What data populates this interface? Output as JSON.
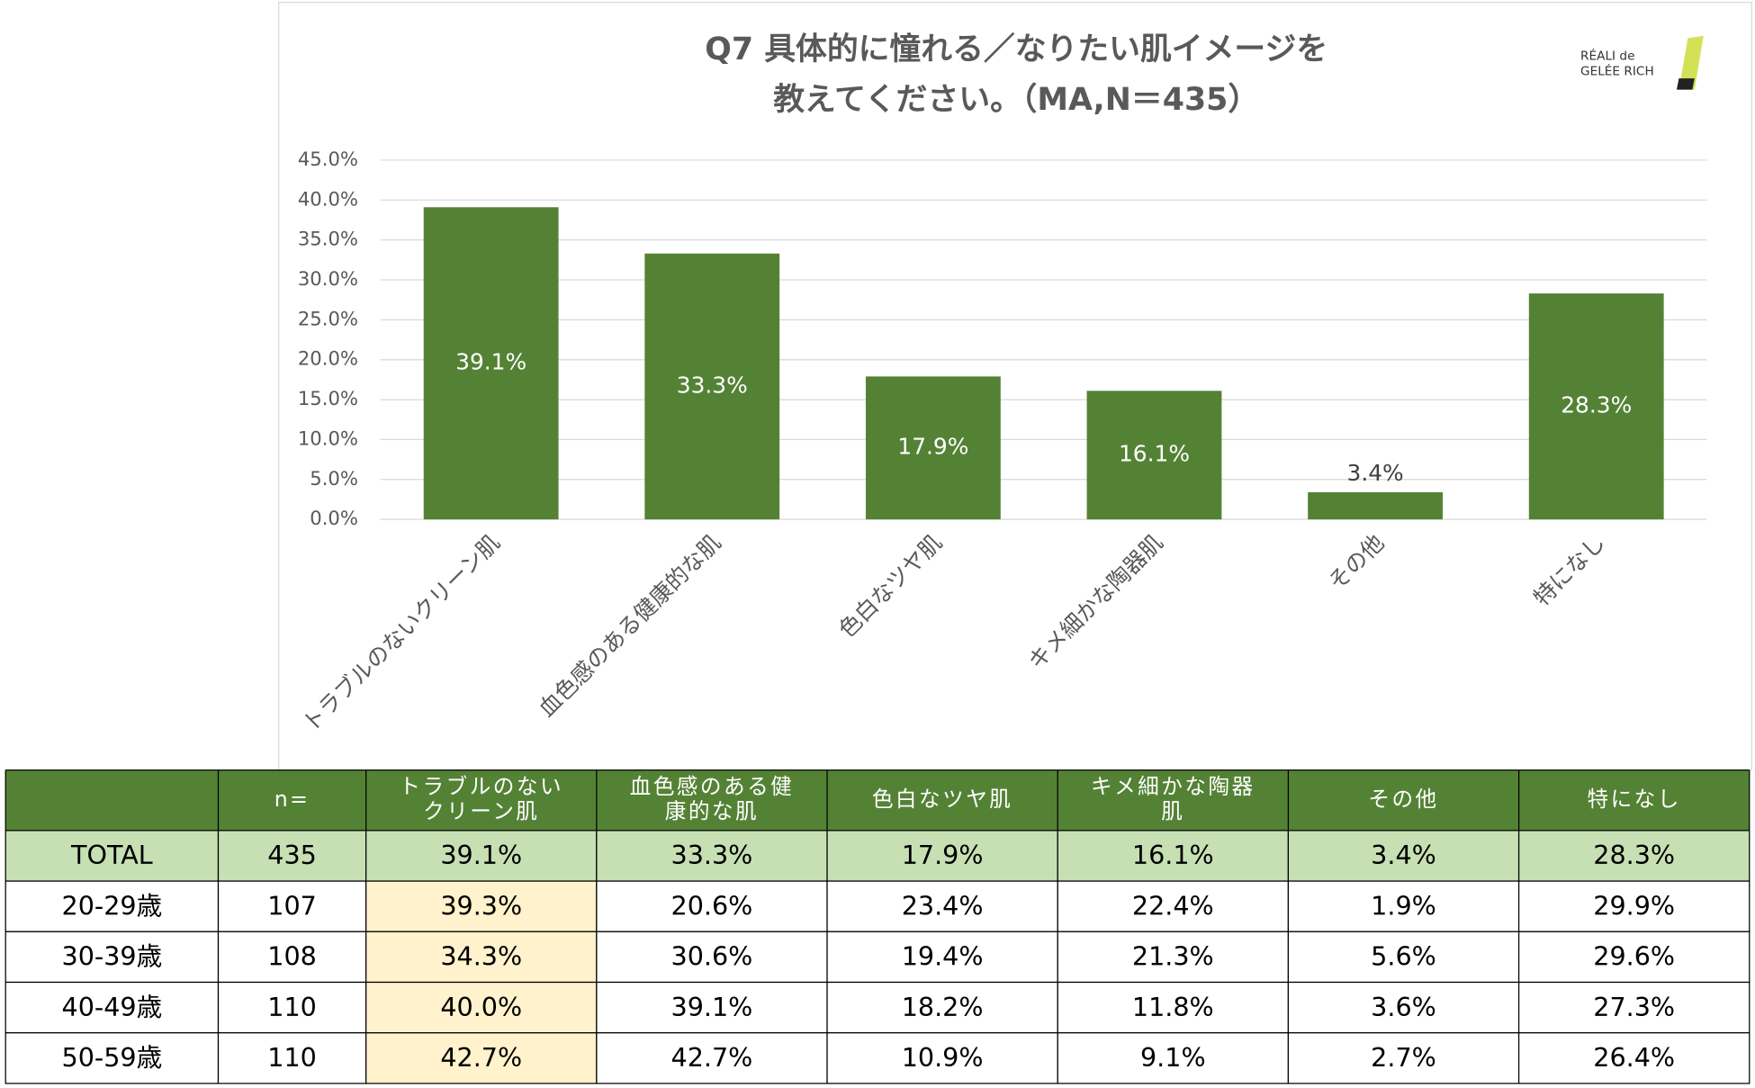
{
  "chart_data": {
    "type": "bar",
    "title": [
      "Q7 具体的に憧れる／なりたい肌イメージを",
      "教えてください。（MA,N＝435）"
    ],
    "logo": [
      "RÉALI de",
      "GELÉE RICH"
    ],
    "categories": [
      "トラブルのないクリーン肌",
      "血色感のある健康的な肌",
      "色白なツヤ肌",
      "キメ細かな陶器肌",
      "その他",
      "特になし"
    ],
    "values": [
      39.1,
      33.3,
      17.9,
      16.1,
      3.4,
      28.3
    ],
    "value_labels": [
      "39.1%",
      "33.3%",
      "17.9%",
      "16.1%",
      "3.4%",
      "28.3%"
    ],
    "color": "#548235",
    "ylim": [
      0,
      45
    ],
    "yticks": [
      {
        "value": 0,
        "label": "0.0%"
      },
      {
        "value": 5,
        "label": "5.0%"
      },
      {
        "value": 10,
        "label": "10.0%"
      },
      {
        "value": 15,
        "label": "15.0%"
      },
      {
        "value": 20,
        "label": "20.0%"
      },
      {
        "value": 25,
        "label": "25.0%"
      },
      {
        "value": 30,
        "label": "30.0%"
      },
      {
        "value": 35,
        "label": "35.0%"
      },
      {
        "value": 40,
        "label": "40.0%"
      },
      {
        "value": 45,
        "label": "45.0%"
      }
    ],
    "grid": true
  },
  "table": {
    "columns": [
      [
        "n="
      ],
      [
        "トラブルのない",
        "クリーン肌"
      ],
      [
        "血色感のある健",
        "康的な肌"
      ],
      [
        "色白なツヤ肌"
      ],
      [
        "キメ細かな陶器",
        "肌"
      ],
      [
        "その他"
      ],
      [
        "特になし"
      ]
    ],
    "rows": [
      [
        "TOTAL",
        "435",
        "39.1%",
        "33.3%",
        "17.9%",
        "16.1%",
        "3.4%",
        "28.3%"
      ],
      [
        "20-29歳",
        "107",
        "39.3%",
        "20.6%",
        "23.4%",
        "22.4%",
        "1.9%",
        "29.9%"
      ],
      [
        "30-39歳",
        "108",
        "34.3%",
        "30.6%",
        "19.4%",
        "21.3%",
        "5.6%",
        "29.6%"
      ],
      [
        "40-49歳",
        "110",
        "40.0%",
        "39.1%",
        "18.2%",
        "11.8%",
        "3.6%",
        "27.3%"
      ],
      [
        "50-59歳",
        "110",
        "42.7%",
        "42.7%",
        "10.9%",
        "9.1%",
        "2.7%",
        "26.4%"
      ]
    ]
  }
}
